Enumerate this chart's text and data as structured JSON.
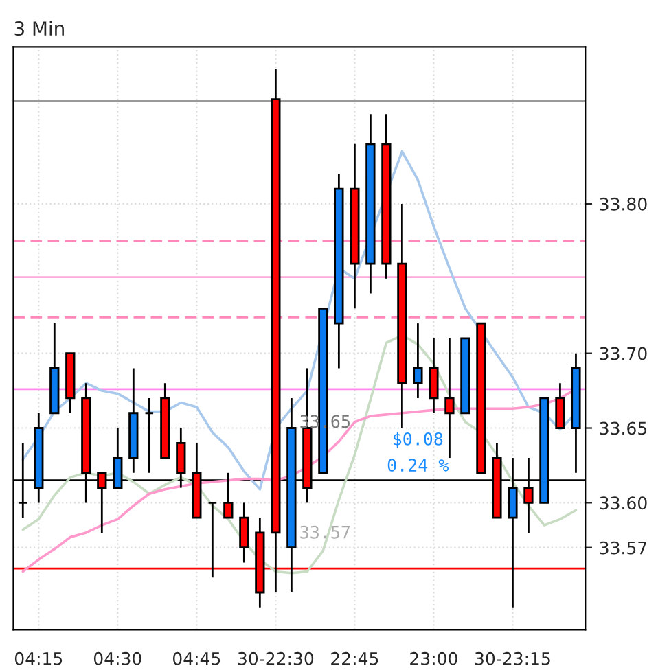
{
  "chart_data": {
    "type": "candlestick",
    "title": "3 Min",
    "categories": [
      null,
      "04:15",
      null,
      null,
      null,
      null,
      "04:30",
      null,
      null,
      null,
      null,
      "04:45",
      null,
      null,
      null,
      null,
      "30-22:30",
      null,
      null,
      null,
      null,
      "22:45",
      null,
      null,
      null,
      null,
      "23:00",
      null,
      null,
      null,
      null,
      "30-23:15",
      null,
      null,
      null,
      null
    ],
    "ohlc": [
      [
        33.6,
        33.64,
        33.59,
        33.6
      ],
      [
        33.61,
        33.66,
        33.6,
        33.65
      ],
      [
        33.66,
        33.72,
        33.66,
        33.69
      ],
      [
        33.7,
        33.7,
        33.66,
        33.67
      ],
      [
        33.67,
        33.68,
        33.6,
        33.62
      ],
      [
        33.62,
        33.62,
        33.58,
        33.61
      ],
      [
        33.61,
        33.65,
        33.61,
        33.63
      ],
      [
        33.63,
        33.69,
        33.62,
        33.66
      ],
      [
        33.66,
        33.67,
        33.62,
        33.66
      ],
      [
        33.67,
        33.68,
        33.63,
        33.63
      ],
      [
        33.64,
        33.65,
        33.61,
        33.62
      ],
      [
        33.62,
        33.64,
        33.59,
        33.59
      ],
      [
        33.6,
        33.6,
        33.55,
        33.6
      ],
      [
        33.6,
        33.62,
        33.59,
        33.59
      ],
      [
        33.59,
        33.6,
        33.56,
        33.57
      ],
      [
        33.58,
        33.59,
        33.53,
        33.54
      ],
      [
        33.87,
        33.89,
        33.54,
        33.58
      ],
      [
        33.57,
        33.67,
        33.54,
        33.65
      ],
      [
        33.65,
        33.69,
        33.6,
        33.61
      ],
      [
        33.62,
        33.73,
        33.62,
        33.73
      ],
      [
        33.72,
        33.82,
        33.69,
        33.81
      ],
      [
        33.81,
        33.84,
        33.73,
        33.76
      ],
      [
        33.76,
        33.86,
        33.74,
        33.84
      ],
      [
        33.84,
        33.86,
        33.75,
        33.76
      ],
      [
        33.76,
        33.8,
        33.65,
        33.68
      ],
      [
        33.68,
        33.72,
        33.67,
        33.69
      ],
      [
        33.69,
        33.71,
        33.66,
        33.67
      ],
      [
        33.67,
        33.71,
        33.63,
        33.66
      ],
      [
        33.66,
        33.71,
        33.66,
        33.71
      ],
      [
        33.72,
        33.72,
        33.62,
        33.62
      ],
      [
        33.63,
        33.64,
        33.59,
        33.59
      ],
      [
        33.59,
        33.63,
        33.53,
        33.61
      ],
      [
        33.61,
        33.63,
        33.58,
        33.6
      ],
      [
        33.6,
        33.67,
        33.6,
        33.67
      ],
      [
        33.67,
        33.68,
        33.65,
        33.65
      ],
      [
        33.65,
        33.7,
        33.62,
        33.69
      ]
    ],
    "colors": [
      "#000000",
      "#0a7cf0",
      "#0a7cf0",
      "#ff0000",
      "#ff0000",
      "#ff0000",
      "#0a7cf0",
      "#0a7cf0",
      "#000000",
      "#ff0000",
      "#ff0000",
      "#ff0000",
      "#000000",
      "#ff0000",
      "#ff0000",
      "#ff0000",
      "#ff0000",
      "#0a7cf0",
      "#ff0000",
      "#0a7cf0",
      "#0a7cf0",
      "#ff0000",
      "#0a7cf0",
      "#ff0000",
      "#ff0000",
      "#0a7cf0",
      "#ff0000",
      "#ff0000",
      "#0a7cf0",
      "#ff0000",
      "#ff0000",
      "#0a7cf0",
      "#ff0000",
      "#0a7cf0",
      "#ff0000",
      "#0a7cf0"
    ],
    "series": [
      {
        "type": "line",
        "color": "#a8c8ec",
        "values": [
          33.629,
          33.644,
          33.661,
          33.67,
          33.68,
          33.675,
          33.673,
          33.667,
          33.661,
          33.661,
          33.667,
          33.664,
          33.647,
          33.637,
          33.621,
          33.609,
          33.65,
          33.663,
          33.675,
          null,
          33.757,
          33.75,
          null,
          null,
          33.835,
          33.816,
          33.785,
          33.757,
          33.73,
          null,
          33.699,
          33.684,
          33.664,
          33.66,
          33.649,
          33.66
        ]
      },
      {
        "type": "line",
        "color": "#c8dcc4",
        "values": [
          33.582,
          33.589,
          33.605,
          33.617,
          33.62,
          33.618,
          33.62,
          33.614,
          33.606,
          33.612,
          33.617,
          33.612,
          33.598,
          33.589,
          33.574,
          33.562,
          33.554,
          33.553,
          33.554,
          33.568,
          33.602,
          33.632,
          33.669,
          33.707,
          33.712,
          33.706,
          33.693,
          33.672,
          33.654,
          33.647,
          33.632,
          33.614,
          33.598,
          33.585,
          33.589,
          33.595
        ]
      },
      {
        "type": "line",
        "color": "#ff99cc",
        "values": [
          33.554,
          33.562,
          33.569,
          33.577,
          33.58,
          33.585,
          33.589,
          33.598,
          33.606,
          33.609,
          33.611,
          33.613,
          33.614,
          33.615,
          33.616,
          33.616,
          33.615,
          33.618,
          33.624,
          33.631,
          33.641,
          33.654,
          33.658,
          33.659,
          33.66,
          33.661,
          33.662,
          33.663,
          33.663,
          33.663,
          33.663,
          33.663,
          33.664,
          33.666,
          33.67,
          33.676
        ]
      }
    ],
    "ylim": [
      33.515,
      33.905
    ],
    "yticks": [
      {
        "value": 33.57,
        "label": "33.57"
      },
      {
        "value": 33.6,
        "label": "33.60"
      },
      {
        "value": 33.65,
        "label": "33.65"
      },
      {
        "value": 33.7,
        "label": "33.70"
      },
      {
        "value": 33.8,
        "label": "33.80"
      }
    ],
    "ref_lines": [
      {
        "axis": "y",
        "value": 33.869,
        "color": "#999999",
        "line_style": "solid"
      },
      {
        "axis": "y",
        "value": 33.775,
        "color": "#ff88bb",
        "line_style": "dashed"
      },
      {
        "axis": "y",
        "value": 33.751,
        "color": "#ffaadd",
        "line_style": "solid"
      },
      {
        "axis": "y",
        "value": 33.724,
        "color": "#ff88bb",
        "line_style": "dashed"
      },
      {
        "axis": "y",
        "value": 33.676,
        "color": "#ff88ee",
        "line_style": "solid"
      },
      {
        "axis": "y",
        "value": 33.615,
        "color": "#000000",
        "line_style": "solid"
      },
      {
        "axis": "y",
        "value": 33.556,
        "color": "#ff0000",
        "line_style": "solid"
      }
    ],
    "annotations": [
      "33.65",
      "33.57",
      "$0.08",
      "0.24 %"
    ],
    "grid": true
  }
}
